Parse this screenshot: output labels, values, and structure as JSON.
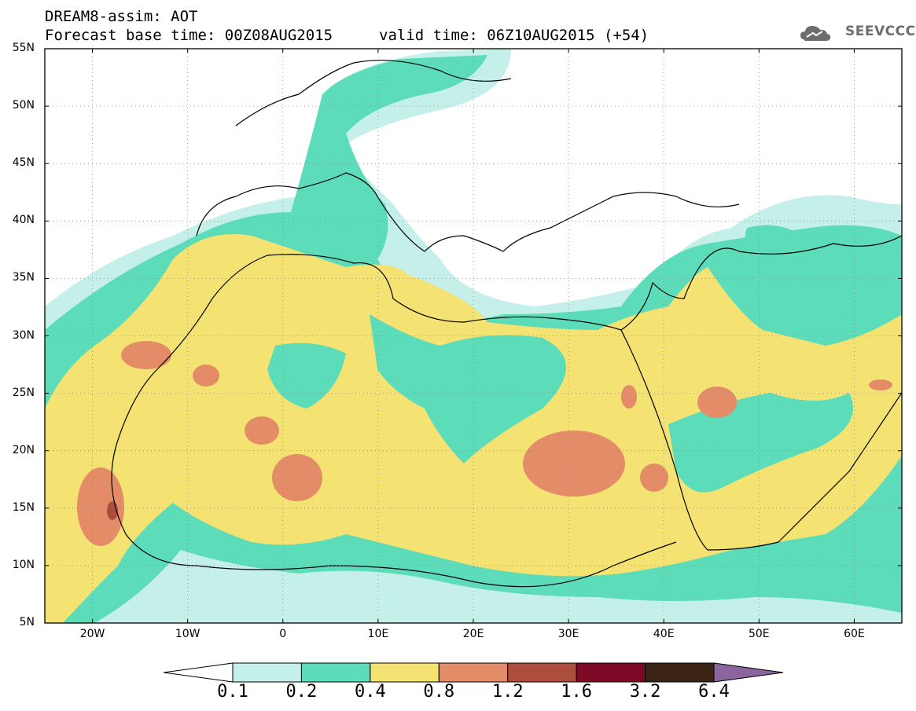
{
  "header": {
    "title_line1": "DREAM8-assim: AOT",
    "title_line2": "Forecast base time: 00Z08AUG2015",
    "valid_time": "valid time: 06Z10AUG2015 (+54)",
    "logo_text": "SEEVCCC"
  },
  "map": {
    "lat_labels": [
      "55N",
      "50N",
      "45N",
      "40N",
      "35N",
      "30N",
      "25N",
      "20N",
      "15N",
      "10N",
      "5N"
    ],
    "lon_labels": [
      "20W",
      "10W",
      "0",
      "10E",
      "20E",
      "30E",
      "40E",
      "50E",
      "60E"
    ],
    "extent": {
      "lon": [
        -25,
        65
      ],
      "lat": [
        5,
        55
      ]
    },
    "grid": true
  },
  "colorbar": {
    "labels": [
      "0.1",
      "0.2",
      "0.4",
      "0.8",
      "1.2",
      "1.6",
      "3.2",
      "6.4"
    ],
    "colors": [
      "#ffffff",
      "#c5efe9",
      "#5cdcb8",
      "#f4e273",
      "#e48b67",
      "#ad4d3d",
      "#7d0926",
      "#3b2413",
      "#8c64a0"
    ]
  }
}
